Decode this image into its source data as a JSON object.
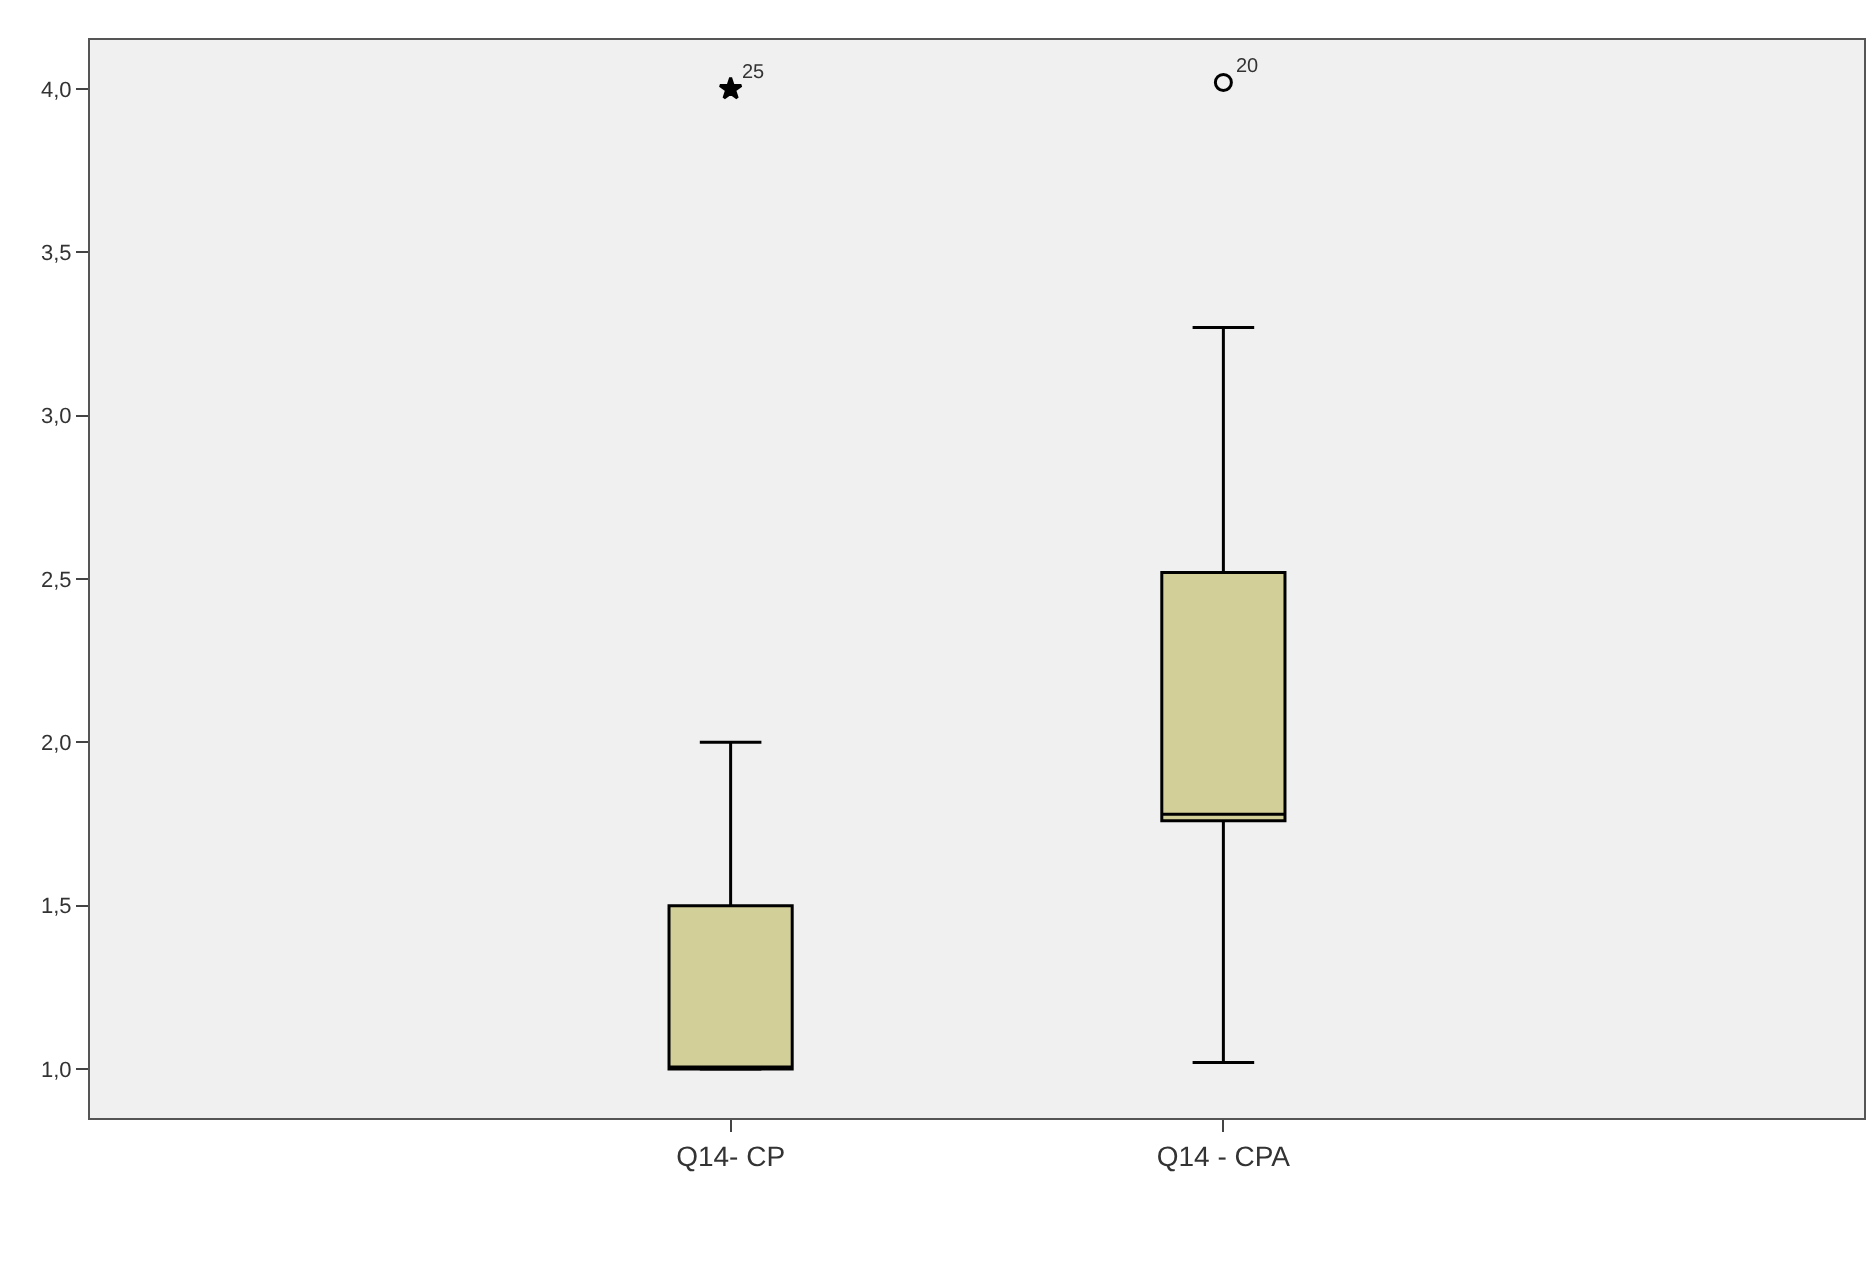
{
  "chart_data": {
    "type": "box",
    "categories": [
      "Q14- CP",
      "Q14 - CPA"
    ],
    "series": [
      {
        "color": "#d3cf98",
        "marker": "star",
        "boxes": [
          {
            "low": 1.0,
            "q1": 1.0,
            "median": 1.0,
            "q3": 1.5,
            "high": 2.0,
            "outliers": [
              4.0
            ]
          },
          null
        ]
      },
      {
        "color": "#d3cf98",
        "marker": "circle",
        "boxes": [
          null,
          {
            "low": 1.02,
            "q1": 1.76,
            "median": 1.78,
            "q3": 2.52,
            "high": 3.27,
            "outliers": [
              4.02
            ]
          }
        ]
      }
    ],
    "ylim": [
      0.85,
      4.15
    ],
    "yticks": [
      {
        "value": 1.0,
        "label": "1,0"
      },
      {
        "value": 1.5,
        "label": "1,5"
      },
      {
        "value": 2.0,
        "label": "2,0"
      },
      {
        "value": 2.5,
        "label": "2,5"
      },
      {
        "value": 3.0,
        "label": "3,0"
      },
      {
        "value": 3.5,
        "label": "3,5"
      },
      {
        "value": 4.0,
        "label": "4,0"
      }
    ],
    "annotations": [
      "25",
      "20"
    ],
    "grid": false
  }
}
